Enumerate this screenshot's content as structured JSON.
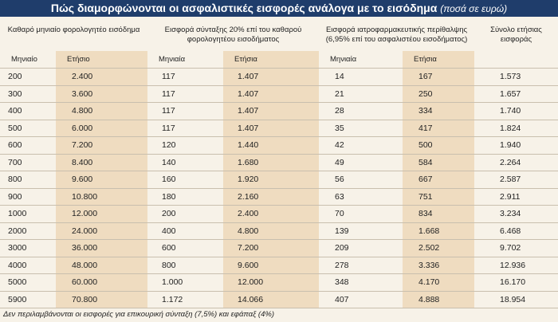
{
  "title": "Πώς διαμορφώνονται οι ασφαλιστικές εισφορές ανάλογα με το εισόδημα",
  "title_note": "(ποσά σε ευρώ)",
  "table": {
    "group_headers": [
      "Καθαρό μηνιαίο φορολογητέο εισόδημα",
      "Εισφορά σύνταξης 20% επί του καθαρού φορολογητέου εισοδήματος",
      "Εισφορά ιατροφαρμακευτικής περίθαλψης (6,95% επί του ασφαλιστέου εισοδήματος)",
      "Σύνολο ετήσιας εισφοράς"
    ],
    "sub_headers": [
      "Μηνιαίο",
      "Ετήσιο",
      "Μηνιαία",
      "Ετήσια",
      "Μηνιαία",
      "Ετήσια"
    ],
    "rows": [
      [
        "200",
        "2.400",
        "117",
        "1.407",
        "14",
        "167",
        "1.573"
      ],
      [
        "300",
        "3.600",
        "117",
        "1.407",
        "21",
        "250",
        "1.657"
      ],
      [
        "400",
        "4.800",
        "117",
        "1.407",
        "28",
        "334",
        "1.740"
      ],
      [
        "500",
        "6.000",
        "117",
        "1.407",
        "35",
        "417",
        "1.824"
      ],
      [
        "600",
        "7.200",
        "120",
        "1.440",
        "42",
        "500",
        "1.940"
      ],
      [
        "700",
        "8.400",
        "140",
        "1.680",
        "49",
        "584",
        "2.264"
      ],
      [
        "800",
        "9.600",
        "160",
        "1.920",
        "56",
        "667",
        "2.587"
      ],
      [
        "900",
        "10.800",
        "180",
        "2.160",
        "63",
        "751",
        "2.911"
      ],
      [
        "1000",
        "12.000",
        "200",
        "2.400",
        "70",
        "834",
        "3.234"
      ],
      [
        "2000",
        "24.000",
        "400",
        "4.800",
        "139",
        "1.668",
        "6.468"
      ],
      [
        "3000",
        "36.000",
        "600",
        "7.200",
        "209",
        "2.502",
        "9.702"
      ],
      [
        "4000",
        "48.000",
        "800",
        "9.600",
        "278",
        "3.336",
        "12.936"
      ],
      [
        "5000",
        "60.000",
        "1.000",
        "12.000",
        "348",
        "4.170",
        "16.170"
      ],
      [
        "5900",
        "70.800",
        "1.172",
        "14.066",
        "407",
        "4.888",
        "18.954"
      ]
    ]
  },
  "footnote": "Δεν περιλαμβάνονται οι εισφορές για επικουρική σύνταξη (7,5%) και εφάπαξ (4%)"
}
